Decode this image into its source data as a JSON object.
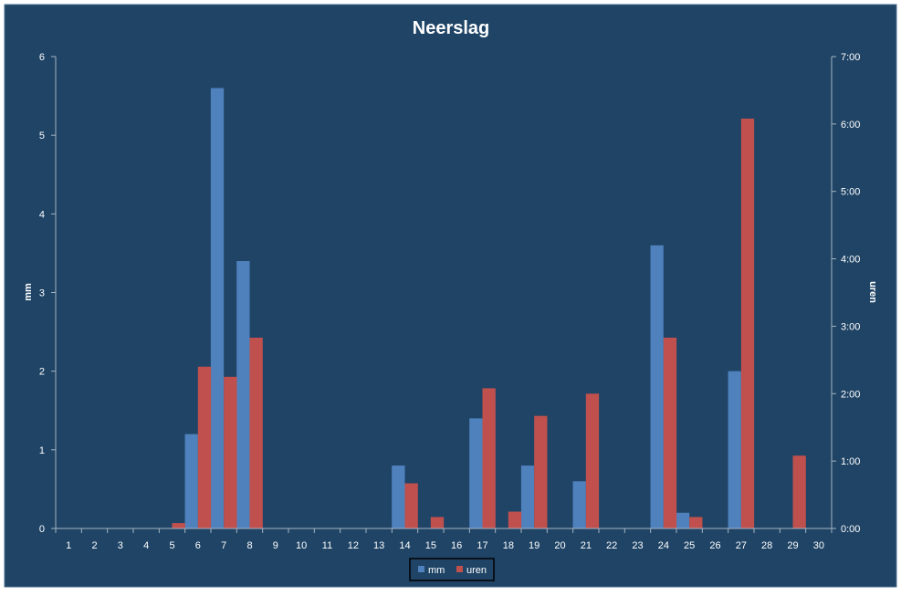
{
  "chart_data": {
    "type": "bar",
    "title": "Neerslag",
    "xlabel": "",
    "ylabel": "mm",
    "y2label": "uren",
    "categories": [
      "1",
      "2",
      "3",
      "4",
      "5",
      "6",
      "7",
      "8",
      "9",
      "10",
      "11",
      "12",
      "13",
      "14",
      "15",
      "16",
      "17",
      "18",
      "19",
      "20",
      "21",
      "22",
      "23",
      "24",
      "25",
      "26",
      "27",
      "28",
      "29",
      "30"
    ],
    "ylim": [
      0,
      6
    ],
    "yticks": [
      0,
      1,
      2,
      3,
      4,
      5,
      6
    ],
    "y2lim": [
      0,
      7
    ],
    "y2ticks": [
      "0:00",
      "1:00",
      "2:00",
      "3:00",
      "4:00",
      "5:00",
      "6:00",
      "7:00"
    ],
    "series": [
      {
        "name": "mm",
        "axis": "left",
        "color": "#4f81bd",
        "values": [
          0,
          0,
          0,
          0,
          0,
          1.2,
          5.6,
          3.4,
          0,
          0,
          0,
          0,
          0,
          0.8,
          0,
          0,
          1.4,
          0,
          0.8,
          0,
          0.6,
          0,
          0,
          3.6,
          0.2,
          0,
          2.0,
          0,
          0,
          0
        ]
      },
      {
        "name": "uren",
        "axis": "right",
        "color": "#c0504d",
        "values": [
          0,
          0,
          0,
          0,
          0.08,
          2.4,
          2.25,
          2.83,
          0,
          0,
          0,
          0,
          0,
          0.67,
          0.17,
          0,
          2.08,
          0.25,
          1.67,
          0,
          2.0,
          0,
          0,
          2.83,
          0.17,
          0,
          6.08,
          0,
          1.08,
          0
        ]
      }
    ],
    "legend_position": "bottom",
    "grid": false
  },
  "colors": {
    "background": "#1f4466",
    "axis": "#a6b4c2",
    "text": "#ffffff",
    "outer_border": "#4a6c8c"
  }
}
